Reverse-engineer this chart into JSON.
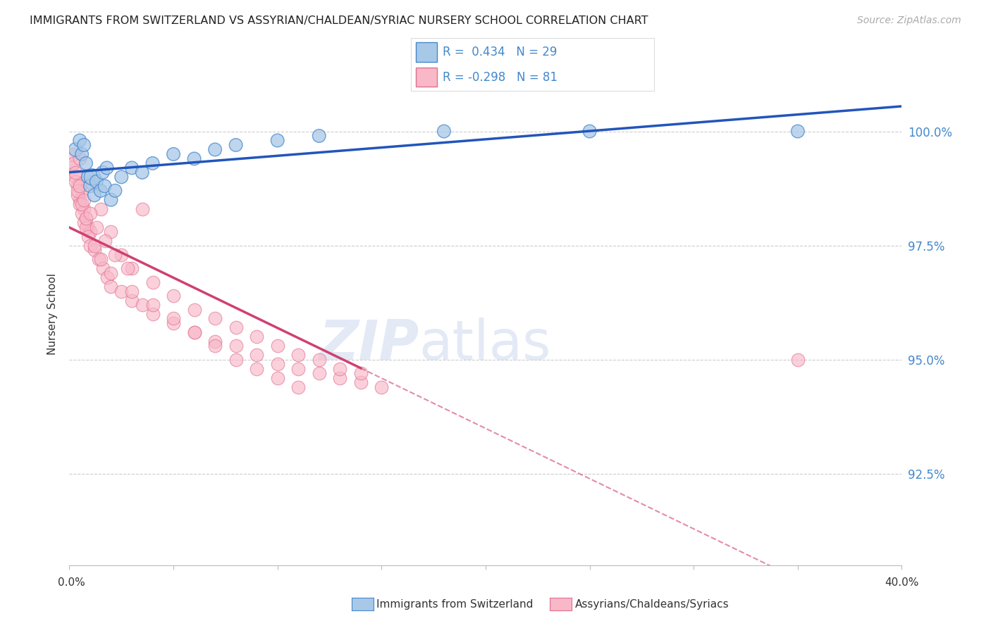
{
  "title": "IMMIGRANTS FROM SWITZERLAND VS ASSYRIAN/CHALDEAN/SYRIAC NURSERY SCHOOL CORRELATION CHART",
  "source": "Source: ZipAtlas.com",
  "ylabel": "Nursery School",
  "legend_blue_r": "0.434",
  "legend_blue_n": "29",
  "legend_pink_r": "-0.298",
  "legend_pink_n": "81",
  "legend_blue_label": "Immigrants from Switzerland",
  "legend_pink_label": "Assyrians/Chaldeans/Syriacs",
  "blue_color": "#a8c8e8",
  "blue_edge_color": "#4488cc",
  "blue_line_color": "#2255bb",
  "pink_color": "#f8b8c8",
  "pink_edge_color": "#e07090",
  "pink_line_color": "#d04070",
  "right_tick_color": "#4488cc",
  "grid_color": "#cccccc",
  "x_range": [
    0.0,
    40.0
  ],
  "y_range": [
    90.5,
    101.5
  ],
  "y_tick_vals": [
    92.5,
    95.0,
    97.5,
    100.0
  ],
  "blue_scatter_x": [
    0.3,
    0.5,
    0.6,
    0.7,
    0.8,
    0.9,
    1.0,
    1.1,
    1.2,
    1.3,
    1.5,
    1.6,
    1.7,
    1.8,
    2.0,
    2.2,
    2.5,
    3.0,
    3.5,
    4.0,
    5.0,
    6.0,
    7.0,
    8.0,
    10.0,
    12.0,
    18.0,
    25.0,
    35.0
  ],
  "blue_scatter_y": [
    99.6,
    99.8,
    99.5,
    99.7,
    99.3,
    99.0,
    98.8,
    99.0,
    98.6,
    98.9,
    98.7,
    99.1,
    98.8,
    99.2,
    98.5,
    98.7,
    99.0,
    99.2,
    99.1,
    99.3,
    99.5,
    99.4,
    99.6,
    99.7,
    99.8,
    99.9,
    100.0,
    100.0,
    100.0
  ],
  "blue_scatter_sizes": [
    200,
    180,
    180,
    180,
    180,
    180,
    180,
    280,
    180,
    180,
    180,
    180,
    180,
    180,
    180,
    180,
    180,
    180,
    180,
    180,
    180,
    180,
    180,
    180,
    180,
    180,
    180,
    180,
    180
  ],
  "pink_scatter_x": [
    0.1,
    0.2,
    0.3,
    0.4,
    0.5,
    0.6,
    0.7,
    0.8,
    0.9,
    1.0,
    0.2,
    0.3,
    0.4,
    0.5,
    0.6,
    0.7,
    0.8,
    0.9,
    1.0,
    1.2,
    1.4,
    1.6,
    1.8,
    2.0,
    2.5,
    3.0,
    3.5,
    4.0,
    5.0,
    6.0,
    7.0,
    8.0,
    9.0,
    10.0,
    11.0,
    12.0,
    13.0,
    14.0,
    15.0,
    3.5,
    0.5,
    1.0,
    1.5,
    2.0,
    2.5,
    3.0,
    4.0,
    5.0,
    6.0,
    7.0,
    8.0,
    9.0,
    10.0,
    11.0,
    12.0,
    13.0,
    14.0,
    0.4,
    0.6,
    0.8,
    1.2,
    1.5,
    2.0,
    3.0,
    4.0,
    5.0,
    6.0,
    7.0,
    8.0,
    9.0,
    10.0,
    11.0,
    0.3,
    0.5,
    0.7,
    1.0,
    1.3,
    1.7,
    2.2,
    2.8,
    35.0
  ],
  "pink_scatter_y": [
    99.2,
    99.5,
    99.0,
    98.8,
    98.5,
    98.7,
    98.3,
    98.1,
    97.9,
    97.8,
    99.3,
    98.9,
    98.6,
    98.4,
    98.2,
    98.0,
    97.9,
    97.7,
    97.5,
    97.4,
    97.2,
    97.0,
    96.8,
    96.6,
    96.5,
    96.3,
    96.2,
    96.0,
    95.8,
    95.6,
    95.4,
    95.3,
    95.1,
    94.9,
    94.8,
    94.7,
    94.6,
    94.5,
    94.4,
    98.3,
    99.4,
    98.9,
    98.3,
    97.8,
    97.3,
    97.0,
    96.7,
    96.4,
    96.1,
    95.9,
    95.7,
    95.5,
    95.3,
    95.1,
    95.0,
    94.8,
    94.7,
    98.7,
    98.4,
    98.1,
    97.5,
    97.2,
    96.9,
    96.5,
    96.2,
    95.9,
    95.6,
    95.3,
    95.0,
    94.8,
    94.6,
    94.4,
    99.1,
    98.8,
    98.5,
    98.2,
    97.9,
    97.6,
    97.3,
    97.0,
    95.0
  ],
  "blue_trend_x0": 0.0,
  "blue_trend_x1": 40.0,
  "pink_solid_x0": 0.0,
  "pink_solid_x1": 14.0,
  "pink_dash_x0": 14.0,
  "pink_dash_x1": 40.0
}
